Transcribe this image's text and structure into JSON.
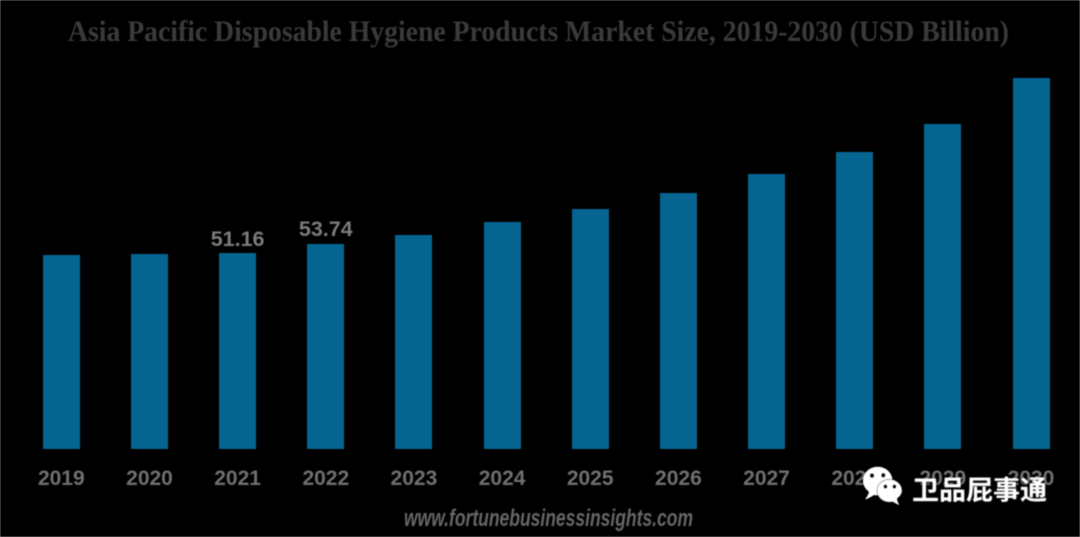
{
  "page": {
    "background": "#000000"
  },
  "chart": {
    "title": "Asia Pacific Disposable Hygiene Products Market Size, 2019-2030 (USD Billion)",
    "title_color": "#3a3a3a",
    "bar_color": "#066490",
    "data_label_color": "#7b7b7b",
    "axis_label_color": "#6f6f6f"
  },
  "chart_data": {
    "type": "bar",
    "title": "Asia Pacific Disposable Hygiene Products Market Size, 2019-2030 (USD Billion)",
    "categories": [
      "2019",
      "2020",
      "2021",
      "2022",
      "2023",
      "2024",
      "2025",
      "2026",
      "2027",
      "2028",
      "2029",
      "2030"
    ],
    "values": [
      50.8,
      51.0,
      51.16,
      53.74,
      56.1,
      59.3,
      62.7,
      66.9,
      71.9,
      77.8,
      85.0,
      97.0
    ],
    "data_labels": [
      "",
      "",
      "51.16",
      "53.74",
      "",
      "",
      "",
      "",
      "",
      "",
      "",
      ""
    ],
    "xlabel": "",
    "ylabel": "USD Billion",
    "ylim": [
      0,
      102
    ],
    "grid": false,
    "legend": false
  },
  "footer": {
    "website": "www.fortunebusinessinsights.com",
    "website_color": "#666666"
  },
  "watermark": {
    "icon": "wechat-icon",
    "text": "卫品屁事通",
    "color": "#ffffff"
  }
}
